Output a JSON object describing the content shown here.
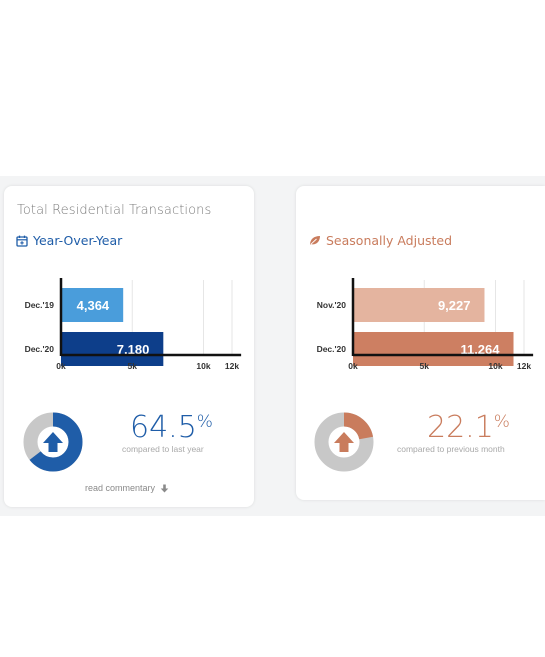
{
  "colors": {
    "accent_blue": "#1f5da8",
    "accent_orange": "#c97c5d",
    "bar_blue_light": "#4a9ddb",
    "bar_blue_dark": "#0d3e8a",
    "bar_orange_light": "#e4b49f",
    "bar_orange_dark": "#cd7f62",
    "donut_grey": "#c8c8c8"
  },
  "card_yoy": {
    "title": "Total Residential Transactions",
    "subtitle": "Year-Over-Year",
    "subtitle_icon": "calendar-icon",
    "percent": "64.5",
    "percent_sign": "%",
    "compare_text": "compared to last year",
    "donut_fraction": 0.645,
    "read_more": "read commentary",
    "read_more_icon": "arrow-down-icon"
  },
  "card_sa": {
    "subtitle": "Seasonally Adjusted",
    "subtitle_icon": "leaf-icon",
    "percent": "22.1",
    "percent_sign": "%",
    "compare_text": "compared to previous month",
    "donut_fraction": 0.221
  },
  "chart_data": [
    {
      "type": "bar",
      "orientation": "horizontal",
      "categories": [
        "Dec.'19",
        "Dec.'20"
      ],
      "values": [
        4364,
        7180
      ],
      "value_labels": [
        "4,364",
        "7,180"
      ],
      "colors": [
        "#4a9ddb",
        "#0d3e8a"
      ],
      "xlim": [
        0,
        12500
      ],
      "xticks": [
        0,
        5000,
        10000,
        12000
      ],
      "xtick_labels": [
        "0k",
        "5k",
        "10k",
        "12k"
      ],
      "grid": true
    },
    {
      "type": "bar",
      "orientation": "horizontal",
      "categories": [
        "Nov.'20",
        "Dec.'20"
      ],
      "values": [
        9227,
        11264
      ],
      "value_labels": [
        "9,227",
        "11,264"
      ],
      "colors": [
        "#e4b49f",
        "#cd7f62"
      ],
      "xlim": [
        0,
        12500
      ],
      "xticks": [
        0,
        5000,
        10000,
        12000
      ],
      "xtick_labels": [
        "0k",
        "5k",
        "10k",
        "12k"
      ],
      "grid": true
    }
  ]
}
